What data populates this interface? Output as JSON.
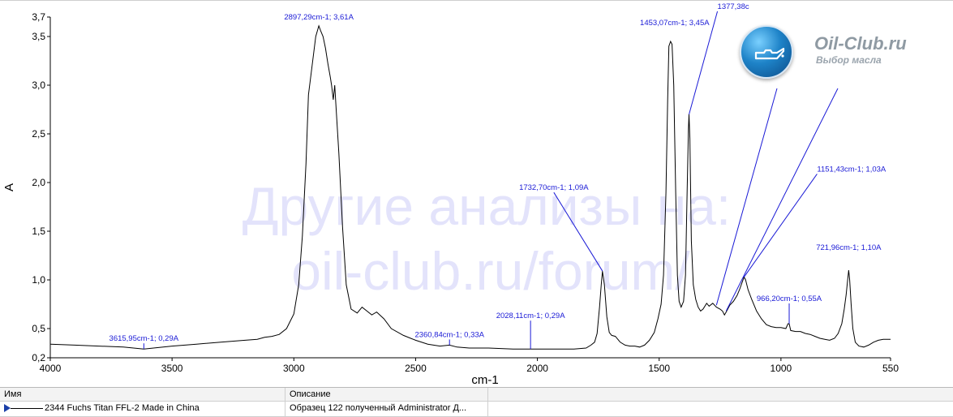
{
  "chart_data": {
    "type": "line",
    "xlabel": "cm-1",
    "ylabel": "A",
    "xlim": [
      4000,
      550
    ],
    "ylim": [
      0.2,
      3.7
    ],
    "x_reversed": true,
    "x_ticks": [
      "4000",
      "3500",
      "3000",
      "2500",
      "2000",
      "1500",
      "1000",
      "550"
    ],
    "x_tick_values": [
      4000,
      3500,
      3000,
      2500,
      2000,
      1500,
      1000,
      550
    ],
    "y_ticks": [
      "0,2",
      "0,5",
      "1,0",
      "1,5",
      "2,0",
      "2,5",
      "3,0",
      "3,5",
      "3,7"
    ],
    "y_tick_values": [
      0.2,
      0.5,
      1.0,
      1.5,
      2.0,
      2.5,
      3.0,
      3.5,
      3.7
    ],
    "grid": false,
    "series": [
      {
        "name": "2344 Fuchs Titan FFL-2 Made in China",
        "color": "#000000",
        "points": [
          [
            4000,
            0.34
          ],
          [
            3900,
            0.33
          ],
          [
            3800,
            0.32
          ],
          [
            3700,
            0.31
          ],
          [
            3615.95,
            0.29
          ],
          [
            3500,
            0.32
          ],
          [
            3400,
            0.34
          ],
          [
            3300,
            0.36
          ],
          [
            3200,
            0.38
          ],
          [
            3150,
            0.39
          ],
          [
            3120,
            0.41
          ],
          [
            3090,
            0.42
          ],
          [
            3060,
            0.44
          ],
          [
            3030,
            0.5
          ],
          [
            3000,
            0.65
          ],
          [
            2980,
            0.95
          ],
          [
            2965,
            1.45
          ],
          [
            2950,
            2.2
          ],
          [
            2940,
            2.9
          ],
          [
            2930,
            3.1
          ],
          [
            2920,
            3.3
          ],
          [
            2910,
            3.5
          ],
          [
            2897.29,
            3.61
          ],
          [
            2890,
            3.56
          ],
          [
            2880,
            3.5
          ],
          [
            2870,
            3.38
          ],
          [
            2860,
            3.22
          ],
          [
            2850,
            3.08
          ],
          [
            2845,
            3.0
          ],
          [
            2838,
            2.85
          ],
          [
            2832,
            3.0
          ],
          [
            2826,
            2.75
          ],
          [
            2815,
            2.3
          ],
          [
            2800,
            1.55
          ],
          [
            2785,
            0.95
          ],
          [
            2765,
            0.7
          ],
          [
            2740,
            0.66
          ],
          [
            2720,
            0.72
          ],
          [
            2700,
            0.68
          ],
          [
            2680,
            0.64
          ],
          [
            2660,
            0.67
          ],
          [
            2630,
            0.6
          ],
          [
            2600,
            0.5
          ],
          [
            2550,
            0.43
          ],
          [
            2500,
            0.38
          ],
          [
            2450,
            0.34
          ],
          [
            2400,
            0.32
          ],
          [
            2360.84,
            0.33
          ],
          [
            2330,
            0.31
          ],
          [
            2280,
            0.3
          ],
          [
            2200,
            0.3
          ],
          [
            2100,
            0.29
          ],
          [
            2028.11,
            0.29
          ],
          [
            1950,
            0.29
          ],
          [
            1900,
            0.29
          ],
          [
            1850,
            0.29
          ],
          [
            1800,
            0.3
          ],
          [
            1780,
            0.33
          ],
          [
            1765,
            0.36
          ],
          [
            1755,
            0.45
          ],
          [
            1745,
            0.72
          ],
          [
            1738,
            0.95
          ],
          [
            1732.7,
            1.09
          ],
          [
            1725,
            0.95
          ],
          [
            1715,
            0.62
          ],
          [
            1705,
            0.46
          ],
          [
            1695,
            0.43
          ],
          [
            1680,
            0.42
          ],
          [
            1660,
            0.36
          ],
          [
            1640,
            0.33
          ],
          [
            1620,
            0.32
          ],
          [
            1600,
            0.32
          ],
          [
            1580,
            0.31
          ],
          [
            1560,
            0.33
          ],
          [
            1540,
            0.38
          ],
          [
            1520,
            0.46
          ],
          [
            1505,
            0.6
          ],
          [
            1492,
            0.75
          ],
          [
            1482,
            1.05
          ],
          [
            1472,
            1.9
          ],
          [
            1465,
            2.85
          ],
          [
            1460,
            3.4
          ],
          [
            1453.07,
            3.45
          ],
          [
            1447,
            3.42
          ],
          [
            1440,
            3.0
          ],
          [
            1432,
            1.9
          ],
          [
            1425,
            1.05
          ],
          [
            1418,
            0.78
          ],
          [
            1410,
            0.72
          ],
          [
            1400,
            0.78
          ],
          [
            1392,
            1.05
          ],
          [
            1385,
            1.95
          ],
          [
            1380,
            2.55
          ],
          [
            1377.38,
            2.7
          ],
          [
            1374,
            2.45
          ],
          [
            1368,
            1.4
          ],
          [
            1360,
            0.95
          ],
          [
            1350,
            0.8
          ],
          [
            1340,
            0.72
          ],
          [
            1330,
            0.68
          ],
          [
            1320,
            0.7
          ],
          [
            1305,
            0.76
          ],
          [
            1295,
            0.73
          ],
          [
            1280,
            0.76
          ],
          [
            1265,
            0.72
          ],
          [
            1250,
            0.7
          ],
          [
            1240,
            0.68
          ],
          [
            1232,
            0.64
          ],
          [
            1225,
            0.67
          ],
          [
            1210,
            0.74
          ],
          [
            1195,
            0.78
          ],
          [
            1180,
            0.84
          ],
          [
            1170,
            0.9
          ],
          [
            1160,
            0.97
          ],
          [
            1151.43,
            1.03
          ],
          [
            1145,
            1.0
          ],
          [
            1135,
            0.9
          ],
          [
            1120,
            0.8
          ],
          [
            1100,
            0.68
          ],
          [
            1080,
            0.6
          ],
          [
            1060,
            0.54
          ],
          [
            1040,
            0.52
          ],
          [
            1020,
            0.51
          ],
          [
            1000,
            0.51
          ],
          [
            980,
            0.5
          ],
          [
            971,
            0.55
          ],
          [
            966.2,
            0.55
          ],
          [
            960,
            0.48
          ],
          [
            940,
            0.47
          ],
          [
            920,
            0.47
          ],
          [
            900,
            0.45
          ],
          [
            880,
            0.44
          ],
          [
            860,
            0.42
          ],
          [
            840,
            0.4
          ],
          [
            820,
            0.39
          ],
          [
            800,
            0.38
          ],
          [
            780,
            0.4
          ],
          [
            765,
            0.45
          ],
          [
            750,
            0.55
          ],
          [
            740,
            0.7
          ],
          [
            732,
            0.85
          ],
          [
            726,
            1.0
          ],
          [
            721.96,
            1.1
          ],
          [
            718,
            1.0
          ],
          [
            712,
            0.75
          ],
          [
            705,
            0.5
          ],
          [
            695,
            0.36
          ],
          [
            680,
            0.32
          ],
          [
            660,
            0.31
          ],
          [
            640,
            0.33
          ],
          [
            620,
            0.36
          ],
          [
            600,
            0.38
          ],
          [
            580,
            0.39
          ],
          [
            560,
            0.39
          ],
          [
            550,
            0.39
          ]
        ]
      }
    ],
    "annotations": [
      {
        "text": "2897,29cm-1; 3,61A",
        "x": 2897.29,
        "y": 3.61
      },
      {
        "text": "3615,95cm-1; 0,29A",
        "x": 3615.95,
        "y": 0.29
      },
      {
        "text": "2360,84cm-1; 0,33A",
        "x": 2360.84,
        "y": 0.33
      },
      {
        "text": "2028,11cm-1; 0,29A",
        "x": 2028.11,
        "y": 0.29
      },
      {
        "text": "1732,70cm-1; 1,09A",
        "x": 1732.7,
        "y": 1.09
      },
      {
        "text": "1453,07cm-1; 3,45A",
        "x": 1453.07,
        "y": 3.45
      },
      {
        "text": "1377,38c",
        "x": 1377.38,
        "y": 2.7
      },
      {
        "text": "1151,43cm-1; 1,03A",
        "x": 1151.43,
        "y": 1.03
      },
      {
        "text": "966,20cm-1; 0,55A",
        "x": 966.2,
        "y": 0.55
      },
      {
        "text": "721,96cm-1; 1,10A",
        "x": 721.96,
        "y": 1.1
      }
    ],
    "watermark": [
      "Другие анализы на:",
      "oil-club.ru/forum/"
    ]
  },
  "logo": {
    "title": "Oil-Club.ru",
    "subtitle": "Выбор масла"
  },
  "grid_table": {
    "headers": [
      "Имя",
      "Описание",
      ""
    ],
    "rows": [
      {
        "name": "2344 Fuchs Titan FFL-2 Made in China",
        "description": "Образец 122 полученный Administrator Д...",
        "extra": ""
      }
    ]
  },
  "colors": {
    "annotation": "#1a1ad6",
    "spectrum": "#000000",
    "watermark": "#e3e3fb"
  }
}
